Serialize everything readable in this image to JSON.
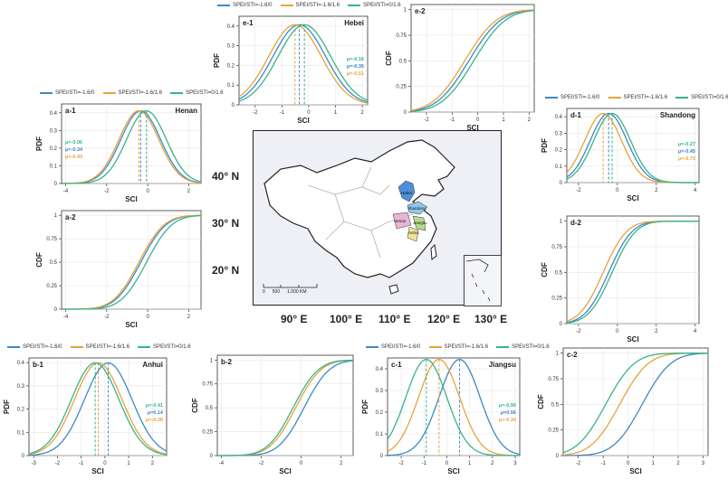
{
  "map": {
    "lat_labels": [
      "40° N",
      "30° N",
      "20° N"
    ],
    "lon_labels": [
      "90° E",
      "100° E",
      "110° E",
      "120° E",
      "130° E"
    ],
    "province_labels": [
      "Hebei",
      "Shandong",
      "Henan",
      "Jiangsu",
      "Anhui"
    ],
    "scale_labels": [
      "0",
      "500",
      "1,000 KM"
    ],
    "colors": {
      "hebei": "#4f8fd8",
      "shandong": "#8fc7e9",
      "henan": "#e7b5d6",
      "jiangsu": "#b7d98a",
      "anhui": "#f1e39a",
      "land": "#ffffff",
      "sea": "#eef0f6"
    }
  },
  "chart_data": [
    {
      "id": "e1",
      "type": "line",
      "panel_label": "e-1",
      "region": "Hebei",
      "legend": [
        "SPEI/STI=-1.6/0",
        "SPEI/STI=-1.6/1.6",
        "SPEI/STI=0/1.6"
      ],
      "xlabel": "SCI",
      "ylabel": "PDF",
      "xlim": [
        -2.6,
        2.2
      ],
      "ylim": [
        0,
        0.45
      ],
      "xticks": [
        -2,
        -1,
        0,
        1,
        2
      ],
      "yticks": [
        0.0,
        0.1,
        0.2,
        0.3,
        0.4
      ],
      "mu_labels": [
        "μ=-0.16",
        "μ=-0.35",
        "μ=-0.51"
      ],
      "series": [
        {
          "name": "SPEI/STI=-1.6/0",
          "color": "#3d89c4",
          "mu": -0.35,
          "sigma": 0.98
        },
        {
          "name": "SPEI/STI=-1.6/1.6",
          "color": "#e9a23b",
          "mu": -0.51,
          "sigma": 0.98
        },
        {
          "name": "SPEI/STI=0/1.6",
          "color": "#39b38a",
          "mu": -0.16,
          "sigma": 0.98
        }
      ]
    },
    {
      "id": "e2",
      "type": "line",
      "panel_label": "e-2",
      "xlabel": "SCI",
      "ylabel": "CDF",
      "xlim": [
        -2.6,
        2.2
      ],
      "ylim": [
        0,
        1.05
      ],
      "xticks": [
        -2,
        -1,
        0,
        1,
        2
      ],
      "yticks": [
        0.0,
        0.25,
        0.5,
        0.75,
        1.0
      ],
      "series": [
        {
          "name": "SPEI/STI=-1.6/0",
          "color": "#3d89c4",
          "mu": -0.35,
          "sigma": 0.98
        },
        {
          "name": "SPEI/STI=-1.6/1.6",
          "color": "#e9a23b",
          "mu": -0.51,
          "sigma": 0.98
        },
        {
          "name": "SPEI/STI=0/1.6",
          "color": "#39b38a",
          "mu": -0.16,
          "sigma": 0.98
        }
      ]
    },
    {
      "id": "a1",
      "type": "line",
      "panel_label": "a-1",
      "region": "Henan",
      "legend": [
        "SPEI/STI=-1.6/0",
        "SPEI/STI=-1.6/1.6",
        "SPEI/STI=0/1.6"
      ],
      "xlabel": "SCI",
      "ylabel": "PDF",
      "xlim": [
        -4.2,
        2.6
      ],
      "ylim": [
        0,
        0.45
      ],
      "xticks": [
        -4,
        -2,
        0,
        2
      ],
      "yticks": [
        0.0,
        0.1,
        0.2,
        0.3,
        0.4
      ],
      "mu_labels": [
        "μ=-0.06",
        "μ=-0.34",
        "μ=-0.43"
      ],
      "series": [
        {
          "name": "SPEI/STI=-1.6/0",
          "color": "#3d89c4",
          "mu": -0.34,
          "sigma": 0.97
        },
        {
          "name": "SPEI/STI=-1.6/1.6",
          "color": "#e9a23b",
          "mu": -0.43,
          "sigma": 0.97
        },
        {
          "name": "SPEI/STI=0/1.6",
          "color": "#39b38a",
          "mu": -0.06,
          "sigma": 0.97
        }
      ]
    },
    {
      "id": "a2",
      "type": "line",
      "panel_label": "a-2",
      "xlabel": "SCI",
      "ylabel": "CDF",
      "xlim": [
        -4.2,
        2.6
      ],
      "ylim": [
        0,
        1.05
      ],
      "xticks": [
        -4,
        -2,
        0,
        2
      ],
      "yticks": [
        0.0,
        0.25,
        0.5,
        0.75,
        1.0
      ],
      "series": [
        {
          "name": "SPEI/STI=-1.6/0",
          "color": "#3d89c4",
          "mu": -0.34,
          "sigma": 0.97
        },
        {
          "name": "SPEI/STI=-1.6/1.6",
          "color": "#e9a23b",
          "mu": -0.43,
          "sigma": 0.97
        },
        {
          "name": "SPEI/STI=0/1.6",
          "color": "#39b38a",
          "mu": -0.06,
          "sigma": 0.97
        }
      ]
    },
    {
      "id": "d1",
      "type": "line",
      "panel_label": "d-1",
      "region": "Shandong",
      "legend": [
        "SPEI/STI=-1.6/0",
        "SPEI/STI=-1.6/1.6",
        "SPEI/STI=0/1.6"
      ],
      "xlabel": "SCI",
      "ylabel": "PDF",
      "xlim": [
        -2.6,
        4.2
      ],
      "ylim": [
        0,
        0.45
      ],
      "xticks": [
        -2,
        0,
        2,
        4
      ],
      "yticks": [
        0.0,
        0.1,
        0.2,
        0.3,
        0.4
      ],
      "mu_labels": [
        "μ=-0.27",
        "μ=-0.45",
        "μ=-0.73"
      ],
      "series": [
        {
          "name": "SPEI/STI=-1.6/0",
          "color": "#3d89c4",
          "mu": -0.45,
          "sigma": 0.95
        },
        {
          "name": "SPEI/STI=-1.6/1.6",
          "color": "#e9a23b",
          "mu": -0.73,
          "sigma": 0.95
        },
        {
          "name": "SPEI/STI=0/1.6",
          "color": "#39b38a",
          "mu": -0.27,
          "sigma": 0.95
        }
      ]
    },
    {
      "id": "d2",
      "type": "line",
      "panel_label": "d-2",
      "xlabel": "SCI",
      "ylabel": "CDF",
      "xlim": [
        -2.6,
        4.2
      ],
      "ylim": [
        0,
        1.05
      ],
      "xticks": [
        -2,
        0,
        2,
        4
      ],
      "yticks": [
        0.0,
        0.25,
        0.5,
        0.75,
        1.0
      ],
      "series": [
        {
          "name": "SPEI/STI=-1.6/0",
          "color": "#3d89c4",
          "mu": -0.45,
          "sigma": 0.95
        },
        {
          "name": "SPEI/STI=-1.6/1.6",
          "color": "#e9a23b",
          "mu": -0.73,
          "sigma": 0.95
        },
        {
          "name": "SPEI/STI=0/1.6",
          "color": "#39b38a",
          "mu": -0.27,
          "sigma": 0.95
        }
      ]
    },
    {
      "id": "b1",
      "type": "line",
      "panel_label": "b-1",
      "region": "Anhui",
      "legend": [
        "SPEI/STI=-1.6/0",
        "SPEI/STI=-1.6/1.6",
        "SPEI/STI=0/1.6"
      ],
      "xlabel": "SCI",
      "ylabel": "PDF",
      "xlim": [
        -3.2,
        2.6
      ],
      "ylim": [
        0,
        0.42
      ],
      "xticks": [
        -3,
        -2,
        -1,
        0,
        1,
        2
      ],
      "yticks": [
        0.0,
        0.1,
        0.2,
        0.3,
        0.4
      ],
      "mu_labels": [
        "μ=-0.41",
        "μ=0.14",
        "μ=-0.28"
      ],
      "series": [
        {
          "name": "SPEI/STI=-1.6/0",
          "color": "#3d89c4",
          "mu": 0.14,
          "sigma": 1.0
        },
        {
          "name": "SPEI/STI=-1.6/1.6",
          "color": "#e9a23b",
          "mu": -0.28,
          "sigma": 1.0
        },
        {
          "name": "SPEI/STI=0/1.6",
          "color": "#39b38a",
          "mu": -0.41,
          "sigma": 1.0
        }
      ]
    },
    {
      "id": "b2",
      "type": "line",
      "panel_label": "b-2",
      "xlabel": "SCI",
      "ylabel": "CDF",
      "xlim": [
        -4.2,
        2.6
      ],
      "ylim": [
        0,
        1.05
      ],
      "xticks": [
        -4,
        -2,
        0,
        2
      ],
      "yticks": [
        0.0,
        0.25,
        0.5,
        0.75,
        1.0
      ],
      "series": [
        {
          "name": "SPEI/STI=-1.6/0",
          "color": "#3d89c4",
          "mu": 0.14,
          "sigma": 1.0
        },
        {
          "name": "SPEI/STI=-1.6/1.6",
          "color": "#e9a23b",
          "mu": -0.28,
          "sigma": 1.0
        },
        {
          "name": "SPEI/STI=0/1.6",
          "color": "#39b38a",
          "mu": -0.41,
          "sigma": 1.0
        }
      ]
    },
    {
      "id": "c1",
      "type": "line",
      "panel_label": "c-1",
      "region": "Jiangsu",
      "legend": [
        "SPEI/STI=-1.6/0",
        "SPEI/STI=-1.6/1.6",
        "SPEI/STI=0/1.6"
      ],
      "xlabel": "SCI",
      "ylabel": "PDF",
      "xlim": [
        -2.6,
        3.2
      ],
      "ylim": [
        0,
        0.45
      ],
      "xticks": [
        -2,
        -1,
        0,
        1,
        2,
        3
      ],
      "yticks": [
        0.0,
        0.1,
        0.2,
        0.3,
        0.4
      ],
      "mu_labels": [
        "μ=-0.90",
        "μ=0.56",
        "μ=-0.34"
      ],
      "series": [
        {
          "name": "SPEI/STI=-1.6/0",
          "color": "#3d89c4",
          "mu": 0.56,
          "sigma": 0.9
        },
        {
          "name": "SPEI/STI=-1.6/1.6",
          "color": "#e9a23b",
          "mu": -0.34,
          "sigma": 0.9
        },
        {
          "name": "SPEI/STI=0/1.6",
          "color": "#39b38a",
          "mu": -0.9,
          "sigma": 0.9
        }
      ]
    },
    {
      "id": "c2",
      "type": "line",
      "panel_label": "c-2",
      "xlabel": "SCI",
      "ylabel": "CDF",
      "xlim": [
        -2.6,
        3.2
      ],
      "ylim": [
        0,
        1.05
      ],
      "xticks": [
        -2,
        -1,
        0,
        1,
        2,
        3
      ],
      "yticks": [
        0.0,
        0.25,
        0.5,
        0.75,
        1.0
      ],
      "series": [
        {
          "name": "SPEI/STI=-1.6/0",
          "color": "#3d89c4",
          "mu": 0.56,
          "sigma": 0.9
        },
        {
          "name": "SPEI/STI=-1.6/1.6",
          "color": "#e9a23b",
          "mu": -0.34,
          "sigma": 0.9
        },
        {
          "name": "SPEI/STI=0/1.6",
          "color": "#39b38a",
          "mu": -0.9,
          "sigma": 0.9
        }
      ]
    }
  ]
}
